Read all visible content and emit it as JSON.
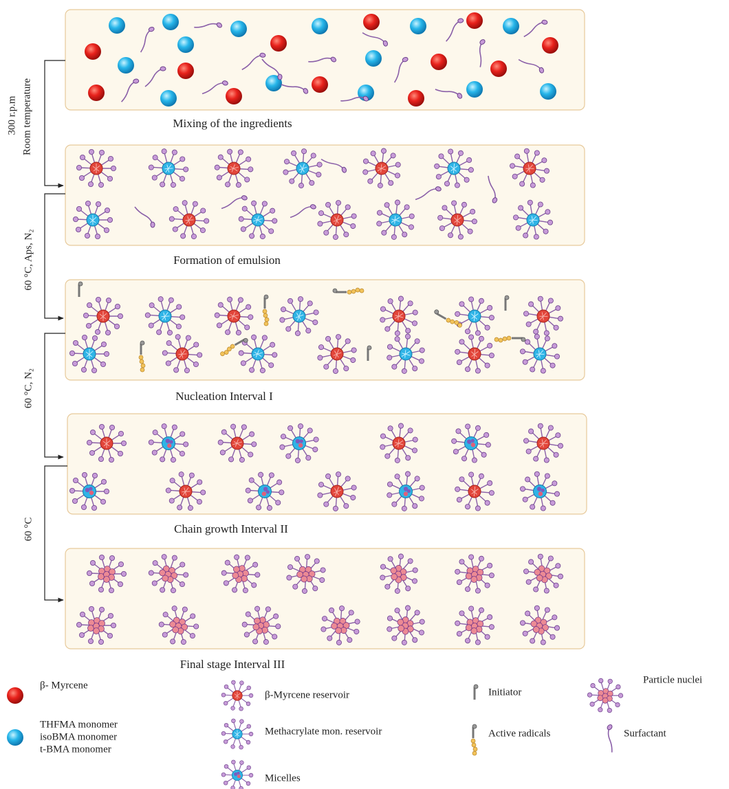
{
  "stages": [
    {
      "caption": "Mixing of the ingredients"
    },
    {
      "caption": "Formation of emulsion"
    },
    {
      "caption": "Nucleation Interval I"
    },
    {
      "caption": "Chain growth Interval II"
    },
    {
      "caption": "Final stage Interval III"
    }
  ],
  "conditions": [
    [
      "300 r.p.m",
      "Room temperature"
    ],
    [
      "60 °C, Aps, N₂"
    ],
    [
      "60 °C, N₂"
    ],
    [
      "60 °C"
    ]
  ],
  "legend": {
    "myrcene": "β- Myrcene",
    "monomers": [
      "THFMA monomer",
      "isoBMA monomer",
      "t-BMA monomer"
    ],
    "myrcene_reservoir": "β-Myrcene reservoir",
    "methacrylate_reservoir": "Methacrylate mon. reservoir",
    "micelles": "Micelles",
    "initiator": "Initiator",
    "active_radicals": "Active radicals",
    "particle_nuclei": "Particle nuclei",
    "surfactant": "Surfactant"
  }
}
